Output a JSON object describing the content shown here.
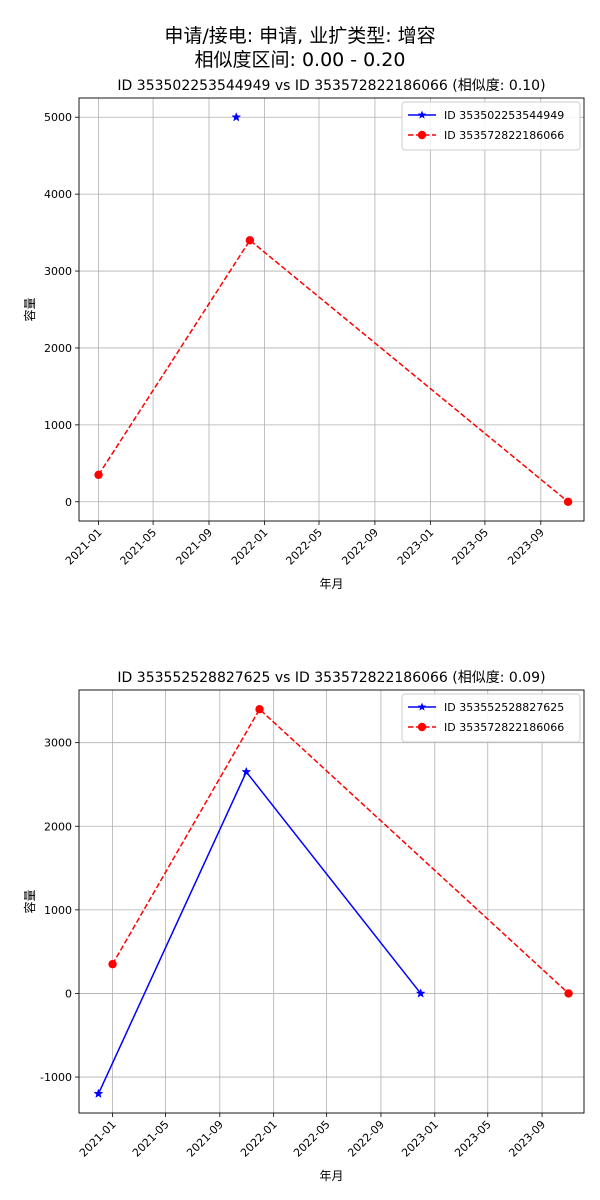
{
  "suptitle_line1": "申请/接电: 申请, 业扩类型: 增容",
  "suptitle_line2": "相似度区间: 0.00 - 0.20",
  "chart_data": [
    {
      "type": "line",
      "title": "ID 353502253544949 vs ID 353572822186066 (相似度: 0.10)",
      "xlabel": "年月",
      "ylabel": "容量",
      "x_type": "date",
      "xlim": [
        "2020-11-19",
        "2023-12-05"
      ],
      "ylim": [
        -250,
        5250
      ],
      "xticks": [
        "2021-01",
        "2021-05",
        "2021-09",
        "2022-01",
        "2022-05",
        "2022-09",
        "2023-01",
        "2023-05",
        "2023-09"
      ],
      "xticks_dates": [
        "2021-01-01",
        "2021-05-01",
        "2021-09-01",
        "2022-01-01",
        "2022-05-01",
        "2022-09-01",
        "2023-01-01",
        "2023-05-01",
        "2023-09-01"
      ],
      "yticks": [
        0,
        1000,
        2000,
        3000,
        4000,
        5000
      ],
      "grid": true,
      "legend_position": "upper right",
      "series": [
        {
          "name": "ID 353502253544949",
          "color": "#0000ff",
          "line_style": "solid",
          "marker": "star",
          "points": [
            [
              "2021-10-31",
              5000
            ]
          ]
        },
        {
          "name": "ID 353572822186066",
          "color": "#ff0000",
          "line_style": "dashed",
          "marker": "circle",
          "points": [
            [
              "2021-01-01",
              350
            ],
            [
              "2021-11-30",
              3400
            ],
            [
              "2023-10-31",
              0
            ]
          ]
        }
      ]
    },
    {
      "type": "line",
      "title": "ID 353552528827625 vs ID 353572822186066 (相似度: 0.09)",
      "xlabel": "年月",
      "ylabel": "容量",
      "x_type": "date",
      "xlim": [
        "2020-10-17",
        "2023-12-05"
      ],
      "ylim": [
        -1430,
        3630
      ],
      "xticks": [
        "2021-01",
        "2021-05",
        "2021-09",
        "2022-01",
        "2022-05",
        "2022-09",
        "2023-01",
        "2023-05",
        "2023-09"
      ],
      "xticks_dates": [
        "2021-01-01",
        "2021-05-01",
        "2021-09-01",
        "2022-01-01",
        "2022-05-01",
        "2022-09-01",
        "2023-01-01",
        "2023-05-01",
        "2023-09-01"
      ],
      "yticks": [
        -1000,
        0,
        1000,
        2000,
        3000
      ],
      "grid": true,
      "legend_position": "upper right",
      "series": [
        {
          "name": "ID 353552528827625",
          "color": "#0000ff",
          "line_style": "solid",
          "marker": "star",
          "points": [
            [
              "2020-11-30",
              -1200
            ],
            [
              "2021-10-31",
              2650
            ],
            [
              "2022-11-30",
              0
            ]
          ]
        },
        {
          "name": "ID 353572822186066",
          "color": "#ff0000",
          "line_style": "dashed",
          "marker": "circle",
          "points": [
            [
              "2021-01-01",
              350
            ],
            [
              "2021-11-30",
              3400
            ],
            [
              "2023-10-31",
              0
            ]
          ]
        }
      ]
    }
  ]
}
